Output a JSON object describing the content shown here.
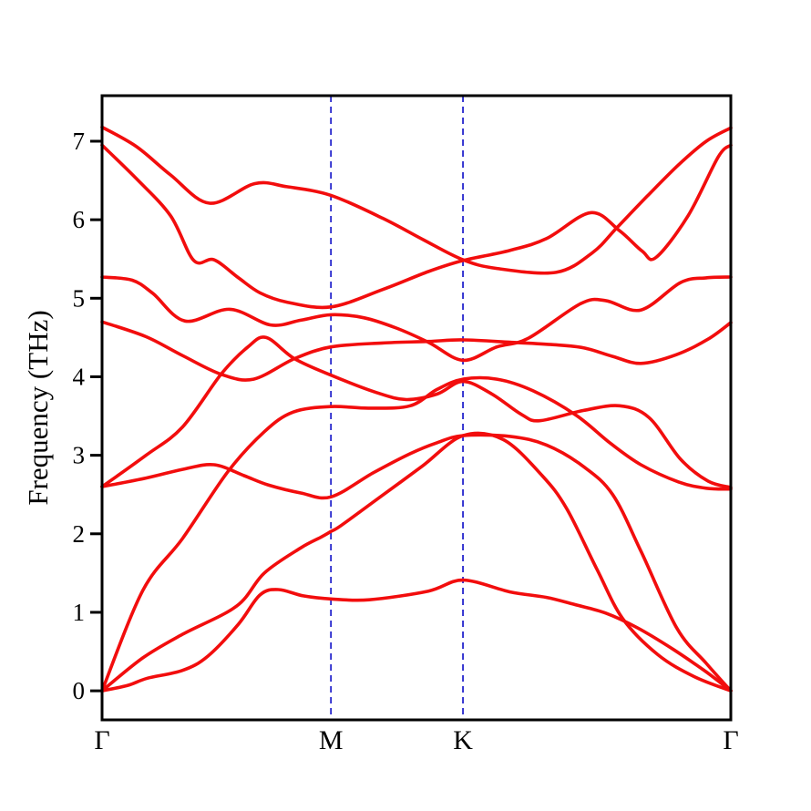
{
  "figure": {
    "kind": "phonon band structure / dispersion plot",
    "background": "#ffffff"
  },
  "chart_data": {
    "type": "line",
    "title": "",
    "xlabel": "",
    "ylabel": "Frequency (THz)",
    "yticks": [
      0,
      1,
      2,
      3,
      4,
      5,
      6,
      7
    ],
    "ylim": [
      -0.37,
      7.58
    ],
    "grid": false,
    "legend": "none",
    "x_axis": {
      "unit": "high-symmetry k-path",
      "high_symmetry_points": [
        {
          "label": "Γ",
          "k": 0.0
        },
        {
          "label": "M",
          "k": 0.364
        },
        {
          "label": "K",
          "k": 0.574
        },
        {
          "label": "Γ",
          "k": 1.0
        }
      ],
      "boundary_vlines_at_k": [
        0.364,
        0.574
      ]
    },
    "styles": {
      "band_color": "#f20d0d",
      "band_width": 3.6,
      "vline_color": "#2323cc",
      "vline_width": 1.8,
      "vline_dash": "7 5",
      "axis_color": "#000000",
      "frame_width": 3,
      "tick_len": 13,
      "tick_width": 3,
      "tick_label_size": 27,
      "x_label_size": 30,
      "y_axis_label_size": 31
    },
    "series": [
      {
        "name": "band-1-ZA",
        "points": [
          [
            0,
            0
          ],
          [
            0.041,
            0.07
          ],
          [
            0.072,
            0.16
          ],
          [
            0.128,
            0.26
          ],
          [
            0.168,
            0.44
          ],
          [
            0.217,
            0.85
          ],
          [
            0.251,
            1.22
          ],
          [
            0.28,
            1.29
          ],
          [
            0.32,
            1.21
          ],
          [
            0.364,
            1.17
          ],
          [
            0.425,
            1.16
          ],
          [
            0.519,
            1.27
          ],
          [
            0.574,
            1.41
          ],
          [
            0.649,
            1.26
          ],
          [
            0.707,
            1.19
          ],
          [
            0.751,
            1.1
          ],
          [
            0.801,
            0.99
          ],
          [
            0.852,
            0.8
          ],
          [
            0.91,
            0.52
          ],
          [
            0.961,
            0.24
          ],
          [
            1,
            0
          ]
        ]
      },
      {
        "name": "band-2-TA",
        "points": [
          [
            0,
            0
          ],
          [
            0.065,
            0.42
          ],
          [
            0.128,
            0.72
          ],
          [
            0.214,
            1.08
          ],
          [
            0.258,
            1.5
          ],
          [
            0.316,
            1.82
          ],
          [
            0.349,
            1.96
          ],
          [
            0.364,
            2.03
          ],
          [
            0.381,
            2.11
          ],
          [
            0.446,
            2.49
          ],
          [
            0.509,
            2.86
          ],
          [
            0.574,
            3.25
          ],
          [
            0.638,
            3.2
          ],
          [
            0.7,
            2.74
          ],
          [
            0.739,
            2.32
          ],
          [
            0.787,
            1.55
          ],
          [
            0.828,
            0.92
          ],
          [
            0.884,
            0.46
          ],
          [
            0.942,
            0.18
          ],
          [
            1,
            0
          ]
        ]
      },
      {
        "name": "band-3-LA",
        "points": [
          [
            0,
            0
          ],
          [
            0.065,
            1.28
          ],
          [
            0.128,
            1.94
          ],
          [
            0.2,
            2.79
          ],
          [
            0.258,
            3.3
          ],
          [
            0.304,
            3.55
          ],
          [
            0.364,
            3.62
          ],
          [
            0.425,
            3.6
          ],
          [
            0.49,
            3.63
          ],
          [
            0.533,
            3.84
          ],
          [
            0.574,
            3.97
          ],
          [
            0.628,
            3.97
          ],
          [
            0.686,
            3.82
          ],
          [
            0.754,
            3.51
          ],
          [
            0.809,
            3.15
          ],
          [
            0.857,
            2.88
          ],
          [
            0.917,
            2.66
          ],
          [
            0.961,
            2.58
          ],
          [
            1,
            2.57
          ]
        ]
      },
      {
        "name": "band-4",
        "points": [
          [
            0,
            2.6
          ],
          [
            0.07,
            2.71
          ],
          [
            0.128,
            2.82
          ],
          [
            0.178,
            2.88
          ],
          [
            0.226,
            2.74
          ],
          [
            0.265,
            2.62
          ],
          [
            0.316,
            2.52
          ],
          [
            0.364,
            2.47
          ],
          [
            0.432,
            2.78
          ],
          [
            0.49,
            3.02
          ],
          [
            0.533,
            3.16
          ],
          [
            0.574,
            3.25
          ],
          [
            0.649,
            3.24
          ],
          [
            0.707,
            3.13
          ],
          [
            0.765,
            2.86
          ],
          [
            0.812,
            2.5
          ],
          [
            0.857,
            1.78
          ],
          [
            0.914,
            0.8
          ],
          [
            0.961,
            0.35
          ],
          [
            1,
            0
          ]
        ]
      },
      {
        "name": "band-5",
        "points": [
          [
            0,
            2.6
          ],
          [
            0.07,
            3.0
          ],
          [
            0.128,
            3.36
          ],
          [
            0.19,
            4.04
          ],
          [
            0.232,
            4.38
          ],
          [
            0.261,
            4.5
          ],
          [
            0.306,
            4.23
          ],
          [
            0.364,
            4.02
          ],
          [
            0.436,
            3.8
          ],
          [
            0.484,
            3.71
          ],
          [
            0.533,
            3.78
          ],
          [
            0.574,
            3.94
          ],
          [
            0.62,
            3.78
          ],
          [
            0.667,
            3.52
          ],
          [
            0.696,
            3.44
          ],
          [
            0.765,
            3.57
          ],
          [
            0.823,
            3.63
          ],
          [
            0.87,
            3.48
          ],
          [
            0.92,
            2.95
          ],
          [
            0.964,
            2.67
          ],
          [
            1,
            2.59
          ]
        ]
      },
      {
        "name": "band-6",
        "points": [
          [
            0,
            4.7
          ],
          [
            0.07,
            4.51
          ],
          [
            0.128,
            4.27
          ],
          [
            0.19,
            4.03
          ],
          [
            0.241,
            3.97
          ],
          [
            0.306,
            4.23
          ],
          [
            0.364,
            4.38
          ],
          [
            0.446,
            4.43
          ],
          [
            0.519,
            4.45
          ],
          [
            0.574,
            4.47
          ],
          [
            0.649,
            4.44
          ],
          [
            0.714,
            4.41
          ],
          [
            0.765,
            4.37
          ],
          [
            0.812,
            4.26
          ],
          [
            0.857,
            4.17
          ],
          [
            0.913,
            4.28
          ],
          [
            0.964,
            4.48
          ],
          [
            1,
            4.69
          ]
        ]
      },
      {
        "name": "band-7",
        "points": [
          [
            0,
            5.27
          ],
          [
            0.048,
            5.23
          ],
          [
            0.081,
            5.06
          ],
          [
            0.132,
            4.71
          ],
          [
            0.203,
            4.86
          ],
          [
            0.268,
            4.66
          ],
          [
            0.316,
            4.72
          ],
          [
            0.364,
            4.79
          ],
          [
            0.417,
            4.75
          ],
          [
            0.468,
            4.62
          ],
          [
            0.519,
            4.44
          ],
          [
            0.574,
            4.21
          ],
          [
            0.628,
            4.38
          ],
          [
            0.678,
            4.49
          ],
          [
            0.761,
            4.93
          ],
          [
            0.801,
            4.97
          ],
          [
            0.857,
            4.85
          ],
          [
            0.92,
            5.2
          ],
          [
            0.961,
            5.26
          ],
          [
            1,
            5.27
          ]
        ]
      },
      {
        "name": "band-8",
        "points": [
          [
            0,
            6.95
          ],
          [
            0.055,
            6.52
          ],
          [
            0.109,
            6.05
          ],
          [
            0.146,
            5.48
          ],
          [
            0.178,
            5.49
          ],
          [
            0.217,
            5.26
          ],
          [
            0.251,
            5.07
          ],
          [
            0.294,
            4.95
          ],
          [
            0.364,
            4.89
          ],
          [
            0.446,
            5.11
          ],
          [
            0.519,
            5.34
          ],
          [
            0.574,
            5.48
          ],
          [
            0.649,
            5.61
          ],
          [
            0.707,
            5.76
          ],
          [
            0.777,
            6.09
          ],
          [
            0.823,
            5.86
          ],
          [
            0.859,
            5.6
          ],
          [
            0.881,
            5.52
          ],
          [
            0.932,
            6.05
          ],
          [
            0.98,
            6.8
          ],
          [
            1,
            6.95
          ]
        ]
      },
      {
        "name": "band-9",
        "points": [
          [
            0,
            7.18
          ],
          [
            0.055,
            6.93
          ],
          [
            0.109,
            6.57
          ],
          [
            0.171,
            6.21
          ],
          [
            0.243,
            6.46
          ],
          [
            0.294,
            6.42
          ],
          [
            0.364,
            6.31
          ],
          [
            0.446,
            6.02
          ],
          [
            0.512,
            5.74
          ],
          [
            0.574,
            5.49
          ],
          [
            0.628,
            5.38
          ],
          [
            0.722,
            5.33
          ],
          [
            0.78,
            5.58
          ],
          [
            0.819,
            5.9
          ],
          [
            0.867,
            6.3
          ],
          [
            0.917,
            6.7
          ],
          [
            0.961,
            7.0
          ],
          [
            1,
            7.17
          ]
        ]
      }
    ]
  }
}
